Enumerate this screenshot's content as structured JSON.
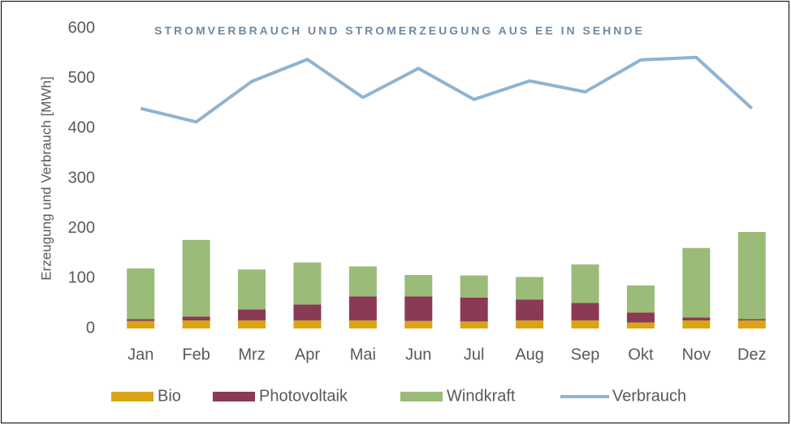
{
  "chart_data": {
    "type": "bar",
    "stacked": true,
    "title": "STROMVERBRAUCH UND STROMERZEUGUNG AUS EE IN SEHNDE",
    "y_label": "Erzeugung und Verbrauch [MWh]",
    "categories": [
      "Jan",
      "Feb",
      "Mrz",
      "Apr",
      "Mai",
      "Jun",
      "Jul",
      "Aug",
      "Sep",
      "Okt",
      "Nov",
      "Dez"
    ],
    "series": [
      {
        "name": "Bio",
        "type": "bar",
        "color": "#d9a514",
        "values": [
          15,
          16,
          16,
          16,
          16,
          15,
          14,
          16,
          16,
          12,
          16,
          16
        ]
      },
      {
        "name": "Photovoltaik",
        "type": "bar",
        "color": "#8a3a55",
        "values": [
          4,
          8,
          22,
          32,
          48,
          49,
          48,
          42,
          35,
          20,
          6,
          3
        ]
      },
      {
        "name": "Windkraft",
        "type": "bar",
        "color": "#9bbb79",
        "values": [
          101,
          153,
          80,
          84,
          60,
          43,
          44,
          45,
          77,
          54,
          139,
          174
        ]
      },
      {
        "name": "Verbrauch",
        "type": "line",
        "color": "#8fb4d2",
        "values": [
          440,
          413,
          494,
          538,
          462,
          520,
          458,
          495,
          473,
          537,
          542,
          440
        ]
      }
    ],
    "ylim": [
      0,
      600
    ],
    "yticks": [
      0,
      100,
      200,
      300,
      400,
      500,
      600
    ],
    "grid": false,
    "legend": "bottom"
  }
}
